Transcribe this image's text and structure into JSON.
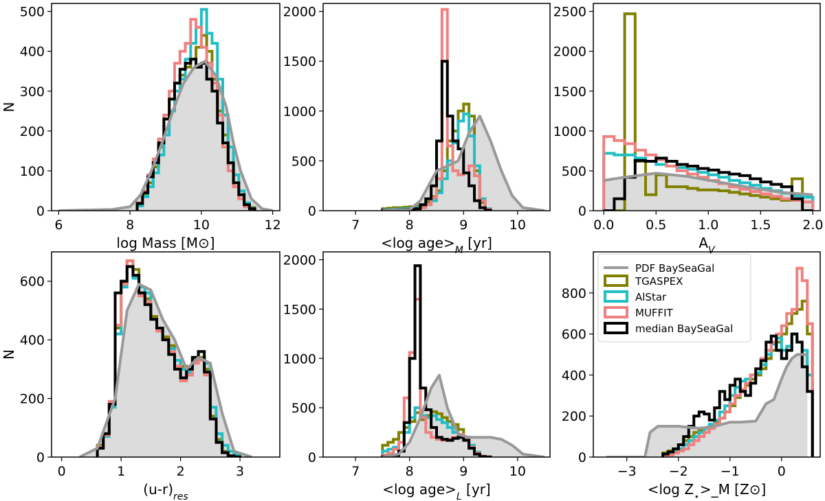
{
  "colors": {
    "pdf": "#999999",
    "tgaspex": "#808000",
    "alstar": "#1fbfc4",
    "muffit": "#f08080",
    "median": "#000000",
    "fill": "#dcdcdc"
  },
  "legend": {
    "entries": [
      {
        "key": "pdf",
        "label": "PDF BaySeaGal"
      },
      {
        "key": "tgaspex",
        "label": "TGASPEX"
      },
      {
        "key": "alstar",
        "label": "AlStar"
      },
      {
        "key": "muffit",
        "label": "MUFFIT"
      },
      {
        "key": "median",
        "label": "median BaySeaGal"
      }
    ]
  },
  "chart_data": [
    {
      "type": "histogram",
      "id": "mass",
      "xlabel": "log Mass [M⊙]",
      "ylabel": "N",
      "xlim": [
        5.8,
        12.2
      ],
      "ylim": [
        0,
        520
      ],
      "xticks": [
        6,
        8,
        10,
        12
      ],
      "yticks": [
        0,
        100,
        200,
        300,
        400,
        500
      ],
      "bins": {
        "start": 8.2,
        "step": 0.15
      },
      "series": [
        {
          "name": "TGASPEX",
          "key": "tgaspex",
          "values": [
            15,
            40,
            70,
            110,
            160,
            230,
            280,
            320,
            340,
            360,
            380,
            410,
            440,
            400,
            330,
            250,
            190,
            120,
            70,
            40,
            18,
            8
          ]
        },
        {
          "name": "AlStar",
          "key": "alstar",
          "values": [
            12,
            35,
            60,
            95,
            140,
            190,
            250,
            300,
            330,
            380,
            420,
            460,
            505,
            445,
            420,
            330,
            240,
            160,
            90,
            50,
            20,
            6
          ]
        },
        {
          "name": "MUFFIT",
          "key": "muffit",
          "values": [
            20,
            50,
            90,
            130,
            180,
            240,
            300,
            370,
            400,
            420,
            480,
            460,
            410,
            370,
            320,
            240,
            160,
            100,
            60,
            30,
            10,
            4
          ]
        },
        {
          "name": "median BaySeaGal",
          "key": "median",
          "values": [
            18,
            45,
            85,
            120,
            170,
            230,
            280,
            320,
            355,
            370,
            380,
            360,
            370,
            330,
            300,
            220,
            170,
            120,
            70,
            40,
            15,
            5
          ]
        }
      ],
      "pdf": {
        "x": [
          6,
          7,
          7.5,
          8,
          8.3,
          8.6,
          8.9,
          9.2,
          9.5,
          9.8,
          10.1,
          10.4,
          10.7,
          10.9,
          11.1,
          11.4,
          11.7,
          12
        ],
        "y": [
          0,
          2,
          3,
          10,
          40,
          100,
          170,
          250,
          320,
          360,
          375,
          340,
          260,
          170,
          100,
          30,
          5,
          0
        ]
      }
    },
    {
      "type": "histogram",
      "id": "agem",
      "xlabel": "<log age>_M [yr]",
      "ylabel": "",
      "xlim": [
        6.4,
        10.6
      ],
      "ylim": [
        0,
        2080
      ],
      "xticks": [
        7,
        8,
        9,
        10
      ],
      "yticks": [
        0,
        500,
        1000,
        1500,
        2000
      ],
      "bins": {
        "start": 7.5,
        "step": 0.1
      },
      "series": [
        {
          "name": "TGASPEX",
          "key": "tgaspex",
          "values": [
            20,
            25,
            30,
            30,
            35,
            40,
            45,
            60,
            90,
            140,
            200,
            400,
            700,
            800,
            1000,
            1070,
            950,
            400,
            80,
            10
          ]
        },
        {
          "name": "AlStar",
          "key": "alstar",
          "values": [
            10,
            12,
            15,
            18,
            20,
            25,
            30,
            40,
            60,
            100,
            180,
            320,
            500,
            680,
            900,
            970,
            750,
            450,
            120,
            20
          ]
        },
        {
          "name": "MUFFIT",
          "key": "muffit",
          "values": [
            5,
            6,
            8,
            10,
            12,
            15,
            20,
            30,
            60,
            130,
            320,
            2020,
            650,
            400,
            360,
            380,
            450,
            350,
            100,
            15
          ]
        },
        {
          "name": "median BaySeaGal",
          "key": "median",
          "values": [
            8,
            8,
            8,
            10,
            12,
            15,
            20,
            60,
            120,
            250,
            700,
            1500,
            950,
            700,
            620,
            380,
            250,
            100,
            30,
            5
          ]
        }
      ],
      "pdf": {
        "x": [
          7.5,
          8,
          8.2,
          8.5,
          8.7,
          8.9,
          9.1,
          9.3,
          9.5,
          9.7,
          9.9,
          10.1,
          10.5
        ],
        "y": [
          5,
          10,
          100,
          400,
          450,
          500,
          780,
          950,
          700,
          400,
          150,
          30,
          0
        ]
      }
    },
    {
      "type": "histogram",
      "id": "av",
      "xlabel": "A_V",
      "ylabel": "",
      "xlim": [
        -0.1,
        2.07
      ],
      "ylim": [
        0,
        2600
      ],
      "xticks": [
        0.0,
        0.5,
        1.0,
        1.5,
        2.0
      ],
      "yticks": [
        0,
        500,
        1000,
        1500,
        2000,
        2500
      ],
      "bins": {
        "start": 0,
        "step": 0.1
      },
      "series": [
        {
          "name": "TGASPEX",
          "key": "tgaspex",
          "values": [
            0,
            0,
            2470,
            620,
            200,
            450,
            300,
            300,
            280,
            260,
            260,
            250,
            230,
            210,
            190,
            170,
            150,
            130,
            400,
            0
          ]
        },
        {
          "name": "AlStar",
          "key": "alstar",
          "values": [
            720,
            700,
            700,
            660,
            620,
            580,
            560,
            540,
            520,
            480,
            450,
            420,
            380,
            350,
            320,
            280,
            250,
            220,
            190,
            170
          ]
        },
        {
          "name": "MUFFIT",
          "key": "muffit",
          "values": [
            930,
            880,
            840,
            760,
            700,
            640,
            560,
            500,
            460,
            420,
            380,
            340,
            300,
            270,
            240,
            210,
            180,
            150,
            130,
            110
          ]
        },
        {
          "name": "median BaySeaGal",
          "key": "median",
          "values": [
            0,
            150,
            420,
            630,
            620,
            660,
            620,
            580,
            560,
            530,
            510,
            480,
            460,
            440,
            400,
            360,
            330,
            300,
            150,
            0
          ]
        }
      ],
      "pdf": {
        "x": [
          0,
          0.2,
          0.5,
          0.8,
          1.1,
          1.4,
          1.7,
          2.0
        ],
        "y": [
          380,
          420,
          470,
          430,
          360,
          290,
          230,
          200
        ]
      }
    },
    {
      "type": "histogram",
      "id": "ur",
      "xlabel": "(u-r)_res",
      "ylabel": "N",
      "xlim": [
        -0.17,
        3.67
      ],
      "ylim": [
        0,
        700
      ],
      "xticks": [
        0,
        1,
        2,
        3
      ],
      "yticks": [
        0,
        200,
        400,
        600
      ],
      "bins": {
        "start": 0.6,
        "step": 0.1
      },
      "series": [
        {
          "name": "TGASPEX",
          "key": "tgaspex",
          "values": [
            40,
            80,
            180,
            440,
            600,
            670,
            640,
            560,
            540,
            480,
            440,
            410,
            380,
            330,
            310,
            280,
            330,
            340,
            300,
            140,
            60,
            20,
            5,
            2
          ]
        },
        {
          "name": "AlStar",
          "key": "alstar",
          "values": [
            30,
            70,
            170,
            420,
            580,
            650,
            610,
            580,
            560,
            470,
            430,
            400,
            370,
            330,
            300,
            290,
            340,
            360,
            320,
            170,
            80,
            40,
            20,
            10
          ]
        },
        {
          "name": "MUFFIT",
          "key": "muffit",
          "values": [
            35,
            75,
            190,
            450,
            590,
            670,
            620,
            550,
            530,
            470,
            430,
            400,
            360,
            310,
            260,
            280,
            320,
            330,
            280,
            130,
            50,
            15,
            4,
            1
          ]
        },
        {
          "name": "median BaySeaGal",
          "key": "median",
          "values": [
            30,
            80,
            180,
            560,
            600,
            650,
            620,
            560,
            520,
            470,
            440,
            400,
            350,
            300,
            270,
            300,
            340,
            360,
            290,
            130,
            50,
            15,
            4,
            1
          ]
        }
      ],
      "pdf": {
        "x": [
          0.3,
          0.6,
          0.9,
          1.1,
          1.3,
          1.5,
          1.7,
          1.9,
          2.1,
          2.3,
          2.5,
          2.7,
          2.9,
          3.2
        ],
        "y": [
          0,
          30,
          200,
          500,
          590,
          570,
          470,
          400,
          300,
          340,
          320,
          150,
          20,
          0
        ]
      }
    },
    {
      "type": "histogram",
      "id": "agel",
      "xlabel": "<log age>_L [yr]",
      "ylabel": "",
      "xlim": [
        6.4,
        10.6
      ],
      "ylim": [
        0,
        2080
      ],
      "xticks": [
        7,
        8,
        9,
        10
      ],
      "yticks": [
        0,
        500,
        1000,
        1500,
        2000
      ],
      "bins": {
        "start": 7.5,
        "step": 0.1
      },
      "series": [
        {
          "name": "TGASPEX",
          "key": "tgaspex",
          "values": [
            120,
            150,
            180,
            250,
            300,
            360,
            450,
            380,
            420,
            460,
            440,
            400,
            360,
            330,
            280,
            200,
            100,
            40,
            10,
            2
          ]
        },
        {
          "name": "AlStar",
          "key": "alstar",
          "values": [
            60,
            80,
            100,
            150,
            250,
            400,
            500,
            420,
            400,
            420,
            380,
            350,
            300,
            250,
            220,
            180,
            120,
            50,
            10,
            2
          ]
        },
        {
          "name": "MUFFIT",
          "key": "muffit",
          "values": [
            20,
            40,
            80,
            150,
            600,
            1060,
            1600,
            400,
            250,
            200,
            180,
            170,
            180,
            200,
            230,
            200,
            100,
            40,
            10,
            2
          ]
        },
        {
          "name": "median BaySeaGal",
          "key": "median",
          "values": [
            5,
            10,
            20,
            60,
            350,
            1000,
            1940,
            700,
            480,
            300,
            200,
            180,
            170,
            190,
            200,
            170,
            90,
            30,
            5,
            1
          ]
        }
      ],
      "pdf": {
        "x": [
          7.5,
          7.8,
          8.0,
          8.2,
          8.4,
          8.55,
          8.7,
          8.9,
          9.1,
          9.3,
          9.5,
          9.7,
          9.9,
          10.1,
          10.5
        ],
        "y": [
          0,
          30,
          150,
          400,
          700,
          830,
          500,
          230,
          200,
          200,
          200,
          180,
          120,
          30,
          0
        ]
      }
    },
    {
      "type": "histogram",
      "id": "logz",
      "xlabel": "<log Z_⋆>_M [Z⊙]",
      "ylabel": "",
      "xlim": [
        -3.65,
        0.75
      ],
      "ylim": [
        0,
        1000
      ],
      "xticks": [
        -3,
        -2,
        -1,
        0
      ],
      "yticks": [
        0,
        200,
        400,
        600,
        800
      ],
      "bins": {
        "start": -2.3,
        "step": 0.1
      },
      "series": [
        {
          "name": "TGASPEX",
          "key": "tgaspex",
          "values": [
            20,
            30,
            40,
            60,
            80,
            100,
            120,
            130,
            140,
            150,
            170,
            190,
            220,
            250,
            290,
            320,
            350,
            380,
            400,
            430,
            480,
            520,
            560,
            600,
            650,
            700,
            720,
            760,
            600
          ]
        },
        {
          "name": "AlStar",
          "key": "alstar",
          "values": [
            10,
            20,
            30,
            40,
            60,
            80,
            100,
            120,
            140,
            160,
            180,
            220,
            250,
            300,
            340,
            370,
            380,
            400,
            410,
            450,
            500,
            550,
            580,
            520,
            540,
            600,
            560,
            520,
            400
          ]
        },
        {
          "name": "MUFFIT",
          "key": "muffit",
          "values": [
            5,
            10,
            20,
            30,
            40,
            60,
            80,
            100,
            120,
            140,
            160,
            190,
            220,
            260,
            300,
            330,
            360,
            400,
            430,
            480,
            520,
            560,
            600,
            640,
            700,
            720,
            920,
            860,
            650
          ]
        },
        {
          "name": "median BaySeaGal",
          "key": "median",
          "values": [
            15,
            25,
            40,
            60,
            100,
            150,
            200,
            220,
            210,
            180,
            240,
            320,
            280,
            350,
            380,
            320,
            300,
            360,
            430,
            470,
            560,
            590,
            520,
            480,
            520,
            600,
            560,
            440,
            320
          ]
        }
      ],
      "pdf": {
        "x": [
          -3.4,
          -2.8,
          -2.65,
          -2.55,
          -2.4,
          -2.0,
          -1.6,
          -1.3,
          -1.0,
          -0.8,
          -0.5,
          -0.3,
          -0.15,
          0.0,
          0.1,
          0.2,
          0.3,
          0.5
        ],
        "y": [
          0,
          0,
          0,
          120,
          150,
          150,
          140,
          150,
          170,
          170,
          175,
          260,
          280,
          380,
          440,
          480,
          500,
          500
        ]
      }
    }
  ]
}
